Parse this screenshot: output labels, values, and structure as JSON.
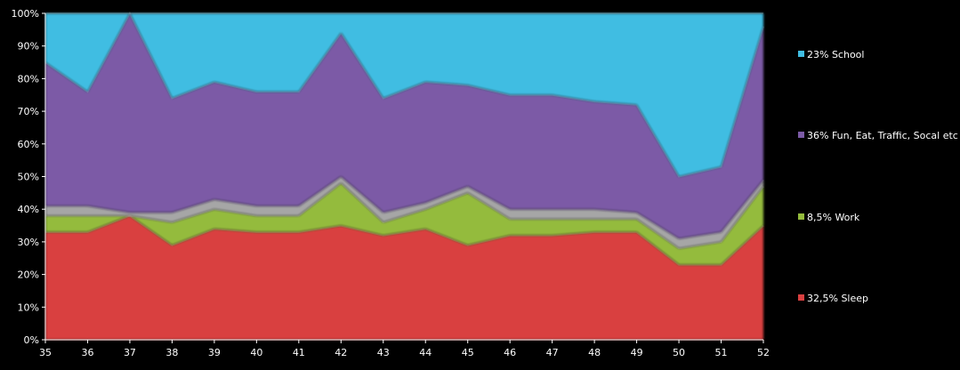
{
  "chart_data": {
    "type": "area",
    "stacked": "percent",
    "x": [
      35,
      36,
      37,
      38,
      39,
      40,
      41,
      42,
      43,
      44,
      45,
      46,
      47,
      48,
      49,
      50,
      51,
      52
    ],
    "ylim": [
      0,
      100
    ],
    "yticks": [
      "0%",
      "10%",
      "20%",
      "30%",
      "40%",
      "50%",
      "60%",
      "70%",
      "80%",
      "90%",
      "100%"
    ],
    "grid": false,
    "legend_position": "right",
    "series": [
      {
        "name": "32,5% Sleep",
        "color": "#d94040",
        "values": [
          33,
          33,
          38,
          29,
          34,
          33,
          33,
          35,
          32,
          34,
          29,
          32,
          32,
          33,
          33,
          23,
          23,
          35
        ]
      },
      {
        "name": "8,5% Work",
        "color": "#94bb3c",
        "values": [
          5,
          5,
          0,
          7,
          6,
          5,
          5,
          13,
          4,
          6,
          16,
          5,
          5,
          4,
          4,
          5,
          7,
          12
        ]
      },
      {
        "name": "",
        "color": "#a6a6a6",
        "values": [
          3,
          3,
          1,
          3,
          3,
          3,
          3,
          2,
          3,
          2,
          2,
          3,
          3,
          3,
          2,
          3,
          3,
          2
        ]
      },
      {
        "name": "36% Fun, Eat, Traffic, Socal etc",
        "color": "#7b5aa6",
        "values": [
          44,
          35,
          61,
          35,
          36,
          35,
          35,
          44,
          35,
          37,
          31,
          35,
          35,
          33,
          33,
          19,
          20,
          47
        ]
      },
      {
        "name": "23% School",
        "color": "#40bde2",
        "values": [
          15,
          24,
          0,
          26,
          21,
          24,
          24,
          6,
          26,
          21,
          22,
          25,
          25,
          27,
          28,
          50,
          47,
          4
        ]
      }
    ],
    "legend": [
      {
        "label": "23% School",
        "color": "#40bde2"
      },
      {
        "label": "36% Fun, Eat, Traffic, Socal etc",
        "color": "#7b5aa6"
      },
      {
        "label": "8,5% Work",
        "color": "#94bb3c"
      },
      {
        "label": "32,5% Sleep",
        "color": "#d94040"
      }
    ]
  }
}
